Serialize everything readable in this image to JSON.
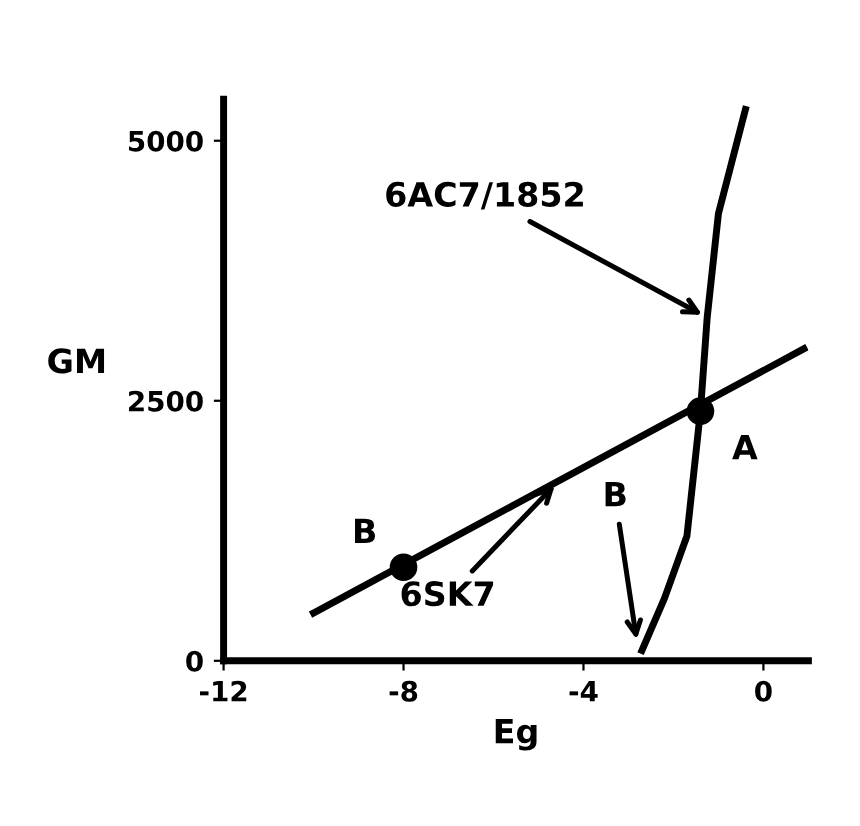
{
  "chart_data": {
    "type": "line",
    "xlabel": "Eg",
    "ylabel": "GM",
    "xlim": [
      -12,
      1
    ],
    "ylim": [
      0,
      5400
    ],
    "xticks": [
      -12,
      -8,
      -4,
      0
    ],
    "yticks": [
      0,
      2500,
      5000
    ],
    "grid": false,
    "legend": false,
    "marker": "none",
    "line_style": "solid",
    "series": [
      {
        "name": "6SK7",
        "color": "#000000",
        "x": [
          -10,
          0.9
        ],
        "values": [
          460,
          3000
        ]
      },
      {
        "name": "6AC7/1852",
        "color": "#000000",
        "x": [
          -2.7,
          -2.2,
          -1.7,
          -1.4,
          -1.25,
          -1.0,
          -0.4
        ],
        "values": [
          100,
          600,
          1200,
          2400,
          3300,
          4300,
          5300
        ]
      },
      {
        "type": "scatter",
        "marker": "circle",
        "color": "#000000",
        "x": [
          -8,
          -1.4
        ],
        "values": [
          900,
          2400
        ],
        "value_labels": [
          "B",
          "A"
        ]
      }
    ],
    "annotations": [
      {
        "text": "B",
        "x": -2.8,
        "y": 150
      }
    ]
  }
}
